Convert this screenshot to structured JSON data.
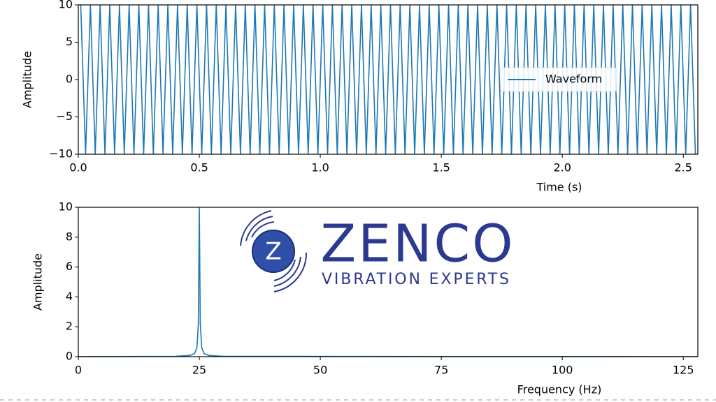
{
  "chart_data": [
    {
      "type": "line",
      "xlabel": "Time (s)",
      "ylabel": "Amplitude",
      "legend": "center right",
      "x": [
        0.01,
        0.03,
        0.05,
        0.07,
        0.09,
        0.11,
        0.13,
        0.15,
        0.17,
        0.19,
        0.21,
        0.23,
        0.25,
        0.27,
        0.29,
        0.31,
        0.33,
        0.35,
        0.37,
        0.39,
        0.41,
        0.43,
        0.45,
        0.47,
        0.49,
        0.51,
        0.53,
        0.55,
        0.57,
        0.59,
        0.61,
        0.63,
        0.65,
        0.67,
        0.69,
        0.71,
        0.73,
        0.75,
        0.77,
        0.79,
        0.81,
        0.83,
        0.85,
        0.87,
        0.89,
        0.91,
        0.93,
        0.95,
        0.97,
        0.99,
        1.01,
        1.03,
        1.05,
        1.07,
        1.09,
        1.11,
        1.13,
        1.15,
        1.17,
        1.19,
        1.21,
        1.23,
        1.25,
        1.27,
        1.29,
        1.31,
        1.33,
        1.35,
        1.37,
        1.39,
        1.41,
        1.43,
        1.45,
        1.47,
        1.49,
        1.51,
        1.53,
        1.55,
        1.57,
        1.59,
        1.61,
        1.63,
        1.65,
        1.67,
        1.69,
        1.71,
        1.73,
        1.75,
        1.77,
        1.79,
        1.81,
        1.83,
        1.85,
        1.87,
        1.89,
        1.91,
        1.93,
        1.95,
        1.97,
        1.99,
        2.01,
        2.03,
        2.05,
        2.07,
        2.09,
        2.11,
        2.13,
        2.15,
        2.17,
        2.19,
        2.21,
        2.23,
        2.25,
        2.27,
        2.29,
        2.31,
        2.33,
        2.35,
        2.37,
        2.39,
        2.41,
        2.43,
        2.45,
        2.47,
        2.49,
        2.51,
        2.53,
        2.55
      ],
      "series": [
        {
          "name": "Waveform",
          "color": "#1f77b4",
          "values": [
            10,
            -10,
            10,
            -10,
            10,
            -10,
            10,
            -10,
            10,
            -10,
            10,
            -10,
            10,
            -10,
            10,
            -10,
            10,
            -10,
            10,
            -10,
            10,
            -10,
            10,
            -10,
            10,
            -10,
            10,
            -10,
            10,
            -10,
            10,
            -10,
            10,
            -10,
            10,
            -10,
            10,
            -10,
            10,
            -10,
            10,
            -10,
            10,
            -10,
            10,
            -10,
            10,
            -10,
            10,
            -10,
            10,
            -10,
            10,
            -10,
            10,
            -10,
            10,
            -10,
            10,
            -10,
            10,
            -10,
            10,
            -10,
            10,
            -10,
            10,
            -10,
            10,
            -10,
            10,
            -10,
            10,
            -10,
            10,
            -10,
            10,
            -10,
            10,
            -10,
            10,
            -10,
            10,
            -10,
            10,
            -10,
            10,
            -10,
            10,
            -10,
            10,
            -10,
            10,
            -10,
            10,
            -10,
            10,
            -10,
            10,
            -10,
            10,
            -10,
            10,
            -10,
            10,
            -10,
            10,
            -10,
            10,
            -10,
            10,
            -10,
            10,
            -10,
            10,
            -10,
            10,
            -10,
            10,
            -10,
            10,
            -10,
            10,
            -10,
            10,
            -10,
            10,
            -10
          ]
        }
      ],
      "xlim": [
        0,
        2.56
      ],
      "xticks": [
        {
          "value": 0,
          "label": "0.0"
        },
        0.5,
        {
          "value": 1,
          "label": "1.0"
        },
        1.5,
        {
          "value": 2,
          "label": "2.0"
        },
        2.5
      ],
      "ylim": [
        -10,
        10
      ],
      "yticks": [
        {
          "value": -10,
          "label": "−10"
        },
        {
          "value": -5,
          "label": "−5"
        },
        0,
        5,
        10
      ]
    },
    {
      "type": "line",
      "xlabel": "Frequency (Hz)",
      "ylabel": "Amplitude",
      "x": [
        0,
        20,
        23,
        24,
        24.5,
        24.8,
        25,
        25.2,
        25.5,
        26,
        27,
        30,
        128
      ],
      "series": [
        {
          "color": "#1f77b4",
          "values": [
            0,
            0.02,
            0.08,
            0.2,
            0.6,
            2.2,
            10,
            2.2,
            0.6,
            0.2,
            0.08,
            0.02,
            0
          ]
        }
      ],
      "xlim": [
        0,
        128
      ],
      "xticks": [
        0,
        25,
        50,
        75,
        100,
        125
      ],
      "ylim": [
        0,
        10
      ],
      "yticks": [
        0,
        2,
        4,
        6,
        8,
        10
      ]
    }
  ],
  "logo": {
    "name": "ZENCO",
    "mark": "Z",
    "tagline": "VIBRATION EXPERTS"
  }
}
